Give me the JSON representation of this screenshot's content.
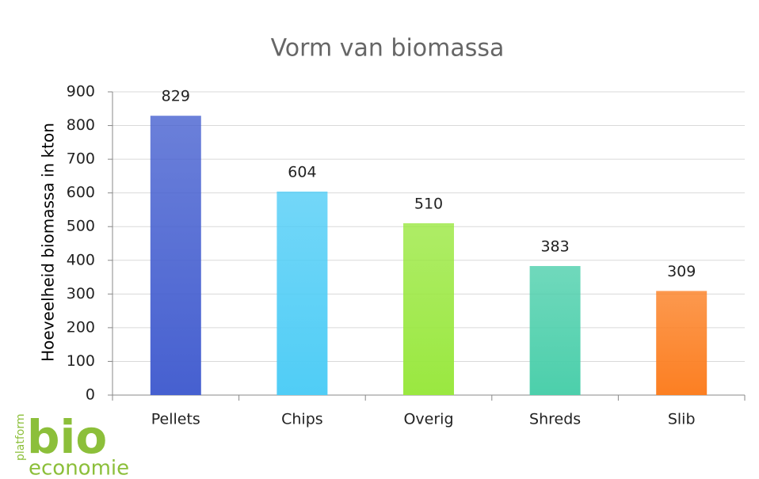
{
  "chart_data": {
    "type": "bar",
    "title": "Vorm van biomassa",
    "y_label": "Hoeveelheid biomassa in kton",
    "categories": [
      "Pellets",
      "Chips",
      "Overig",
      "Shreds",
      "Slib"
    ],
    "values": [
      829,
      604,
      510,
      383,
      309
    ],
    "colors": [
      "#4660d0",
      "#50cdf6",
      "#9ae840",
      "#4ccfab",
      "#fc7f22"
    ],
    "ylim": [
      0,
      900
    ],
    "yticks": [
      0,
      100,
      200,
      300,
      400,
      500,
      600,
      700,
      800,
      900
    ],
    "grid": true,
    "data_labels": true
  },
  "logo": {
    "small": "platform",
    "big": "bio",
    "bottom": "economie"
  }
}
